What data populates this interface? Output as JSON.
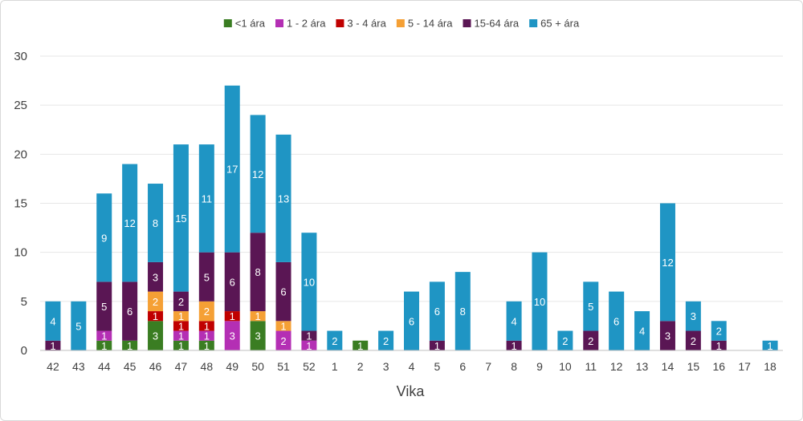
{
  "chart_data": {
    "type": "bar",
    "stacked": true,
    "xlabel": "Vika",
    "ylabel": "",
    "ylim": [
      0,
      30
    ],
    "yticks": [
      0,
      5,
      10,
      15,
      20,
      25,
      30
    ],
    "grid": true,
    "legend_position": "top",
    "categories": [
      "42",
      "43",
      "44",
      "45",
      "46",
      "47",
      "48",
      "49",
      "50",
      "51",
      "52",
      "1",
      "2",
      "3",
      "4",
      "5",
      "6",
      "7",
      "8",
      "9",
      "10",
      "11",
      "12",
      "13",
      "14",
      "15",
      "16",
      "17",
      "18"
    ],
    "series": [
      {
        "name": "<1 ára",
        "color": "#3a7d22",
        "values": [
          0,
          0,
          1,
          1,
          3,
          1,
          1,
          0,
          3,
          0,
          0,
          0,
          1,
          0,
          0,
          0,
          0,
          0,
          0,
          0,
          0,
          0,
          0,
          0,
          0,
          0,
          0,
          0,
          0
        ]
      },
      {
        "name": "1 - 2 ára",
        "color": "#b42fb4",
        "values": [
          0,
          0,
          1,
          0,
          0,
          1,
          1,
          3,
          0,
          2,
          1,
          0,
          0,
          0,
          0,
          0,
          0,
          0,
          0,
          0,
          0,
          0,
          0,
          0,
          0,
          0,
          0,
          0,
          0
        ]
      },
      {
        "name": "3 - 4 ára",
        "color": "#c00000",
        "values": [
          0,
          0,
          0,
          0,
          1,
          1,
          1,
          1,
          0,
          0,
          0,
          0,
          0,
          0,
          0,
          0,
          0,
          0,
          0,
          0,
          0,
          0,
          0,
          0,
          0,
          0,
          0,
          0,
          0
        ]
      },
      {
        "name": "5 - 14 ára",
        "color": "#f5a035",
        "values": [
          0,
          0,
          0,
          0,
          2,
          1,
          2,
          0,
          1,
          1,
          0,
          0,
          0,
          0,
          0,
          0,
          0,
          0,
          0,
          0,
          0,
          0,
          0,
          0,
          0,
          0,
          0,
          0,
          0
        ]
      },
      {
        "name": "15-64 ára",
        "color": "#5a1654",
        "values": [
          1,
          0,
          5,
          6,
          3,
          2,
          5,
          6,
          8,
          6,
          1,
          0,
          0,
          0,
          0,
          1,
          0,
          0,
          1,
          0,
          0,
          2,
          0,
          0,
          3,
          2,
          1,
          0,
          0
        ]
      },
      {
        "name": "65 + ára",
        "color": "#1f95c4",
        "values": [
          4,
          5,
          9,
          12,
          8,
          15,
          11,
          17,
          12,
          13,
          10,
          2,
          0,
          2,
          6,
          6,
          8,
          0,
          4,
          10,
          2,
          5,
          6,
          4,
          12,
          3,
          2,
          0,
          1
        ]
      }
    ]
  }
}
